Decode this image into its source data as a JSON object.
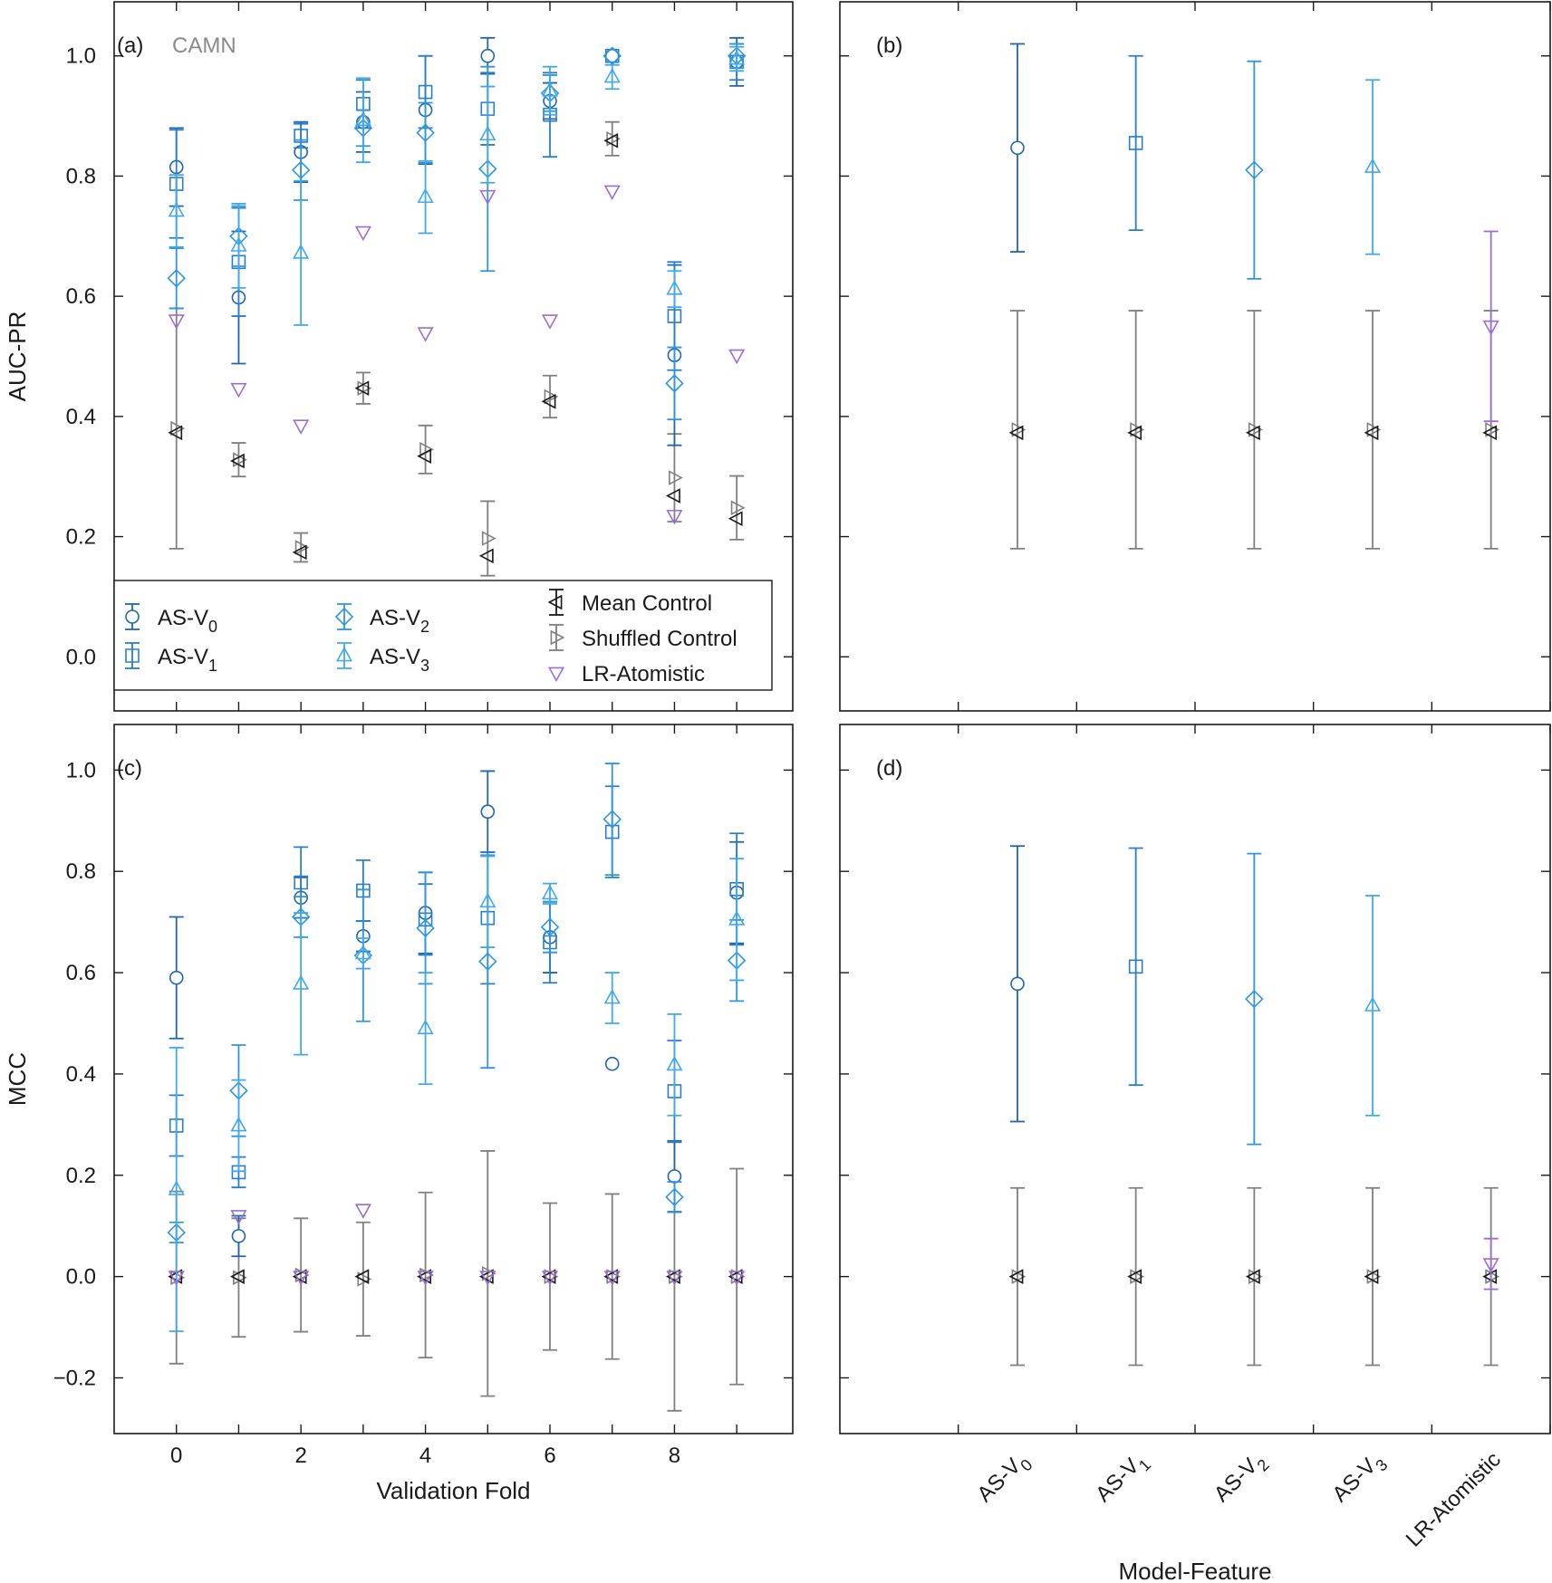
{
  "figure": {
    "legend": {
      "items": [
        {
          "key": "v0",
          "label": "AS-V",
          "sub": "0",
          "marker": "circle",
          "color": "#2166a8"
        },
        {
          "key": "v1",
          "label": "AS-V",
          "sub": "1",
          "marker": "square",
          "color": "#2a7ec6"
        },
        {
          "key": "v2",
          "label": "AS-V",
          "sub": "2",
          "marker": "diamond",
          "color": "#2f95de"
        },
        {
          "key": "v3",
          "label": "AS-V",
          "sub": "3",
          "marker": "triangle-up",
          "color": "#41a9ea"
        },
        {
          "key": "mean",
          "label": "Mean Control",
          "sub": "",
          "marker": "triangle-left",
          "color": "#1a1a1a"
        },
        {
          "key": "shuf",
          "label": "Shuffled Control",
          "sub": "",
          "marker": "triangle-right",
          "color": "#808080"
        },
        {
          "key": "lr",
          "label": "LR-Atomistic",
          "sub": "",
          "marker": "triangle-down",
          "color": "#9b6fcf"
        }
      ]
    },
    "annotation": "CAMN"
  },
  "chart_data": [
    {
      "panel": "(a)",
      "type": "scatter",
      "xlabel": "",
      "ylabel": "AUC-PR",
      "xlim": [
        -1,
        9.9
      ],
      "ylim": [
        -0.09,
        1.09
      ],
      "xticks": [
        0,
        2,
        4,
        6,
        8
      ],
      "yticks": [
        0.0,
        0.2,
        0.4,
        0.6,
        0.8,
        1.0
      ],
      "ytick_labels": [
        "0.0",
        "0.2",
        "0.4",
        "0.6",
        "0.8",
        "1.0"
      ],
      "x": [
        0,
        1,
        2,
        3,
        4,
        5,
        6,
        7,
        8,
        9
      ],
      "series": [
        {
          "key": "v0",
          "values": [
            0.815,
            0.598,
            0.84,
            0.89,
            0.91,
            1.0,
            0.925,
            1.0,
            0.502,
            0.99
          ],
          "err": [
            0.065,
            0.11,
            0.05,
            0.05,
            0.09,
            0.03,
            0.03,
            0.0,
            0.15,
            0.04
          ]
        },
        {
          "key": "v1",
          "values": [
            0.787,
            0.657,
            0.867,
            0.92,
            0.94,
            0.912,
            0.902,
            1.0,
            0.567,
            0.99
          ],
          "err": [
            0.09,
            0.09,
            0.02,
            0.04,
            0.06,
            0.06,
            0.07,
            0.0,
            0.09,
            0.03
          ]
        },
        {
          "key": "v2",
          "values": [
            0.63,
            0.7,
            0.81,
            0.88,
            0.872,
            0.812,
            0.938,
            1.0,
            0.455,
            1.0
          ],
          "err": [
            0.05,
            0.05,
            0.05,
            0.03,
            0.05,
            0.17,
            0.03,
            0.0,
            0.06,
            0.02
          ]
        },
        {
          "key": "v3",
          "values": [
            0.742,
            0.684,
            0.672,
            0.893,
            0.765,
            0.869,
            0.942,
            0.965,
            0.612,
            0.995
          ],
          "err": [
            0.06,
            0.07,
            0.12,
            0.07,
            0.06,
            0.08,
            0.04,
            0.02,
            0.03,
            0.02
          ]
        },
        {
          "key": "mean",
          "values": [
            0.373,
            0.326,
            0.174,
            0.447,
            0.334,
            0.168,
            0.425,
            0.859,
            0.268,
            0.23
          ],
          "err": [
            0.0,
            0.0,
            0.0,
            0.0,
            0.0,
            0.0,
            0.0,
            0.0,
            0.0,
            0.0
          ]
        },
        {
          "key": "shuf",
          "values": [
            0.38,
            0.328,
            0.182,
            0.447,
            0.345,
            0.197,
            0.433,
            0.862,
            0.298,
            0.248
          ],
          "err": [
            0.2,
            0.028,
            0.024,
            0.026,
            0.04,
            0.062,
            0.035,
            0.028,
            0.073,
            0.053
          ]
        },
        {
          "key": "lr",
          "values": [
            0.56,
            0.446,
            0.385,
            0.707,
            0.539,
            0.767,
            0.56,
            0.775,
            0.235,
            0.502
          ]
        }
      ]
    },
    {
      "panel": "(b)",
      "type": "scatter",
      "xlabel": "",
      "ylabel": "",
      "xlim": [
        -1.5,
        4.5
      ],
      "ylim": [
        -0.09,
        1.09
      ],
      "yticks": [
        0.0,
        0.2,
        0.4,
        0.6,
        0.8,
        1.0
      ],
      "categories": [
        "AS-V0",
        "AS-V1",
        "AS-V2",
        "AS-V3",
        "LR-Atomistic"
      ],
      "points": [
        {
          "key": "v0",
          "x": 0,
          "value": 0.847,
          "err": 0.173
        },
        {
          "key": "v1",
          "x": 1,
          "value": 0.855,
          "err": 0.145
        },
        {
          "key": "v2",
          "x": 2,
          "value": 0.81,
          "err": 0.181
        },
        {
          "key": "v3",
          "x": 3,
          "value": 0.815,
          "err": 0.145
        },
        {
          "key": "lr",
          "x": 4,
          "value": 0.55,
          "err": 0.158
        }
      ],
      "controls": {
        "mean": 0.373,
        "shuffled": 0.378,
        "err": 0.198
      }
    },
    {
      "panel": "(c)",
      "type": "scatter",
      "xlabel": "Validation Fold",
      "ylabel": "MCC",
      "xlim": [
        -1,
        9.9
      ],
      "ylim": [
        -0.31,
        1.09
      ],
      "xticks": [
        0,
        2,
        4,
        6,
        8
      ],
      "yticks": [
        -0.2,
        0.0,
        0.2,
        0.4,
        0.6,
        0.8,
        1.0
      ],
      "ytick_labels": [
        "−0.2",
        "0.0",
        "0.2",
        "0.4",
        "0.6",
        "0.8",
        "1.0"
      ],
      "x": [
        0,
        1,
        2,
        3,
        4,
        5,
        6,
        7,
        8,
        9
      ],
      "series": [
        {
          "key": "v0",
          "values": [
            0.59,
            0.08,
            0.748,
            0.672,
            0.718,
            0.918,
            0.67,
            0.42,
            0.198,
            0.758
          ],
          "err": [
            0.12,
            0.04,
            0.04,
            0.03,
            0.08,
            0.08,
            0.07,
            0.0,
            0.07,
            0.1
          ]
        },
        {
          "key": "v1",
          "values": [
            0.298,
            0.206,
            0.778,
            0.762,
            0.705,
            0.708,
            0.66,
            0.878,
            0.366,
            0.765
          ],
          "err": [
            0.06,
            0.03,
            0.07,
            0.06,
            0.07,
            0.13,
            0.08,
            0.09,
            0.1,
            0.11
          ]
        },
        {
          "key": "v2",
          "values": [
            0.087,
            0.367,
            0.71,
            0.634,
            0.688,
            0.622,
            0.69,
            0.903,
            0.157,
            0.624
          ],
          "err": [
            0.02,
            0.09,
            0.04,
            0.13,
            0.11,
            0.21,
            0.05,
            0.11,
            0.03,
            0.08
          ]
        },
        {
          "key": "v3",
          "values": [
            0.172,
            0.298,
            0.578,
            0.638,
            0.49,
            0.74,
            0.756,
            0.55,
            0.418,
            0.705
          ],
          "err": [
            0.28,
            0.09,
            0.14,
            0.03,
            0.11,
            0.09,
            0.02,
            0.05,
            0.1,
            0.12
          ]
        },
        {
          "key": "mean",
          "values": [
            0.0,
            0.0,
            0.0,
            0.0,
            0.0,
            0.0,
            0.0,
            0.0,
            0.0,
            0.0
          ],
          "err": [
            0,
            0,
            0,
            0,
            0,
            0,
            0,
            0,
            0,
            0
          ]
        },
        {
          "key": "shuf",
          "values": [
            -0.002,
            -0.002,
            0.003,
            -0.005,
            0.003,
            0.006,
            0.0,
            0.0,
            0.0,
            0.0
          ],
          "err": [
            0.17,
            0.117,
            0.112,
            0.112,
            0.163,
            0.242,
            0.145,
            0.163,
            0.265,
            0.213
          ]
        },
        {
          "key": "lr",
          "values": [
            0.0,
            0.12,
            0.0,
            0.132,
            0.0,
            0.0,
            0.0,
            0.0,
            0.0,
            0.0
          ]
        }
      ]
    },
    {
      "panel": "(d)",
      "type": "scatter",
      "xlabel": "Model-Feature",
      "ylabel": "",
      "xlim": [
        -1.5,
        4.5
      ],
      "ylim": [
        -0.31,
        1.09
      ],
      "yticks": [
        -0.2,
        0.0,
        0.2,
        0.4,
        0.6,
        0.8,
        1.0
      ],
      "categories": [
        "AS-V0",
        "AS-V1",
        "AS-V2",
        "AS-V3",
        "LR-Atomistic"
      ],
      "points": [
        {
          "key": "v0",
          "x": 0,
          "value": 0.578,
          "err": 0.272
        },
        {
          "key": "v1",
          "x": 1,
          "value": 0.612,
          "err": 0.234
        },
        {
          "key": "v2",
          "x": 2,
          "value": 0.548,
          "err": 0.287
        },
        {
          "key": "v3",
          "x": 3,
          "value": 0.535,
          "err": 0.217
        },
        {
          "key": "lr",
          "x": 4,
          "value": 0.025,
          "err": 0.05
        }
      ],
      "controls": {
        "mean": 0.0,
        "shuffled": 0.0,
        "err": 0.175
      }
    }
  ]
}
